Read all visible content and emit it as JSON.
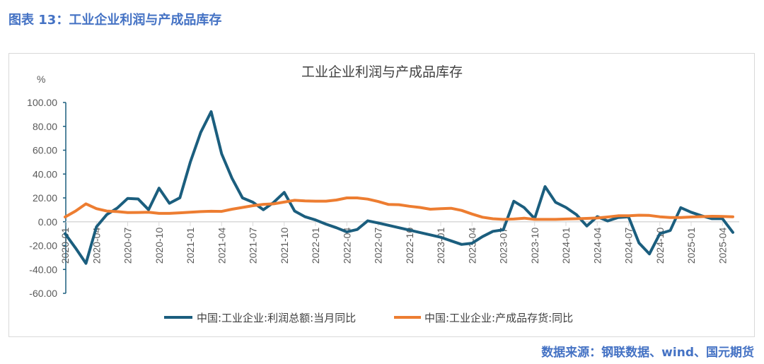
{
  "figure_label": "图表 13：工业企业利润与产成品库存",
  "source": "数据来源：钢联数据、wind、国元期货",
  "colors": {
    "profit": "#1b5e7e",
    "inventory": "#ed7d31",
    "header": "#4472c4"
  },
  "chart_data": {
    "type": "line",
    "title": "工业企业利润与产成品库存",
    "ylabel": "%",
    "ylim": [
      -60,
      100
    ],
    "yticks": [
      "100.00",
      "80.00",
      "60.00",
      "40.00",
      "20.00",
      "0.00",
      "-20.00",
      "-40.00",
      "-60.00"
    ],
    "xticks": [
      "2020-01",
      "2020-04",
      "2020-07",
      "2020-10",
      "2021-01",
      "2021-04",
      "2021-07",
      "2021-10",
      "2022-01",
      "2022-04",
      "2022-07",
      "2022-10",
      "2023-01",
      "2023-04",
      "2023-07",
      "2023-10",
      "2024-01",
      "2024-04",
      "2024-07",
      "2024-10",
      "2025-01",
      "2025-04"
    ],
    "x": [
      "2020-01",
      "2020-02",
      "2020-03",
      "2020-04",
      "2020-05",
      "2020-06",
      "2020-07",
      "2020-08",
      "2020-09",
      "2020-10",
      "2020-11",
      "2020-12",
      "2021-01",
      "2021-02",
      "2021-03",
      "2021-04",
      "2021-05",
      "2021-06",
      "2021-07",
      "2021-08",
      "2021-09",
      "2021-10",
      "2021-11",
      "2021-12",
      "2022-01",
      "2022-02",
      "2022-03",
      "2022-04",
      "2022-05",
      "2022-06",
      "2022-07",
      "2022-08",
      "2022-09",
      "2022-10",
      "2022-11",
      "2022-12",
      "2023-01",
      "2023-02",
      "2023-03",
      "2023-04",
      "2023-05",
      "2023-06",
      "2023-07",
      "2023-08",
      "2023-09",
      "2023-10",
      "2023-11",
      "2023-12",
      "2024-01",
      "2024-02",
      "2024-03",
      "2024-04",
      "2024-05",
      "2024-06",
      "2024-07",
      "2024-08",
      "2024-09",
      "2024-10",
      "2024-11",
      "2024-12",
      "2025-01",
      "2025-02",
      "2025-03",
      "2025-04",
      "2025-05"
    ],
    "legend_position": "bottom",
    "grid": false,
    "series": [
      {
        "name": "中国:工业企业:利润总额:当月同比",
        "key": "profit",
        "values": [
          -10,
          -22,
          -34.9,
          -4.3,
          6,
          11.5,
          19.6,
          19.1,
          10.1,
          28.2,
          15.5,
          20.1,
          50,
          75,
          92.3,
          57,
          36.4,
          20,
          16.4,
          10.1,
          16.3,
          24.6,
          9,
          4.2,
          1.5,
          -2,
          -5,
          -8.5,
          -6.5,
          0.8,
          -1,
          -3,
          -5,
          -7,
          -9,
          -11,
          -13,
          -16,
          -19,
          -18,
          -12.5,
          -8,
          -6.7,
          17.2,
          11.9,
          2.7,
          29.5,
          16.3,
          12,
          6,
          -3.5,
          4.3,
          0.7,
          3.6,
          4.1,
          -17.8,
          -27,
          -10,
          -7.3,
          11.8,
          8,
          5,
          2.6,
          2.6,
          -8.9
        ]
      },
      {
        "name": "中国:工业企业:产成品存货:同比",
        "key": "inventory",
        "values": [
          4,
          9,
          15,
          11,
          9,
          8.5,
          7.7,
          7.8,
          8,
          7,
          7,
          7.5,
          8,
          8.5,
          8.8,
          8.7,
          10.5,
          12,
          13.5,
          14.6,
          15,
          16.5,
          18,
          17.5,
          17.3,
          17.3,
          18.2,
          20,
          20,
          19,
          17,
          14.5,
          14.3,
          13,
          12,
          10.5,
          11,
          11.3,
          9.5,
          6.5,
          3.8,
          2.5,
          2,
          2.3,
          3,
          2,
          2,
          2,
          2.3,
          2.5,
          2.8,
          3.2,
          4,
          5,
          5,
          5.5,
          5.3,
          4.2,
          3.5,
          3.5,
          4,
          4.3,
          4.6,
          4.5,
          4.2
        ]
      }
    ]
  }
}
